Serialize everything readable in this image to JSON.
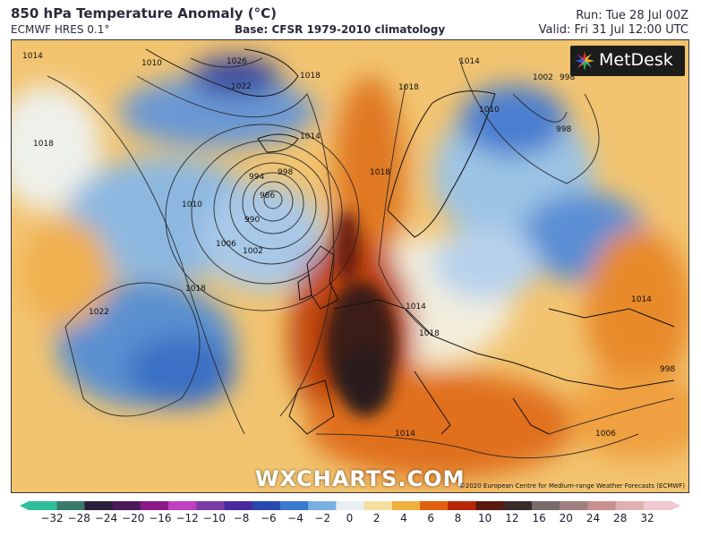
{
  "header": {
    "title": "850 hPa Temperature Anomaly (°C)",
    "model": "ECMWF HRES 0.1°",
    "base": "Base: CFSR 1979-2010 climatology",
    "run": "Run: Tue 28 Jul 00Z",
    "valid": "Valid: Fri 31 Jul 12:00 UTC"
  },
  "logo": {
    "text": "MetDesk"
  },
  "watermark": "WXCHARTS.COM",
  "copyright": "©2020 European Centre for Medium-range Weather Forecasts (ECMWF)",
  "isobar_labels": [
    "1014",
    "1010",
    "1026",
    "1022",
    "1018",
    "1018",
    "1014",
    "998",
    "994",
    "986",
    "990",
    "1002",
    "1006",
    "1010",
    "1018",
    "1022",
    "1018",
    "1014",
    "1018",
    "1010",
    "1002",
    "998",
    "998",
    "1014",
    "1014",
    "1018",
    "998",
    "1006",
    "1014"
  ],
  "colorscale": {
    "ticks": [
      "−32",
      "−28",
      "−24",
      "−20",
      "−16",
      "−12",
      "−10",
      "−8",
      "−6",
      "−4",
      "−2",
      "0",
      "2",
      "4",
      "6",
      "8",
      "10",
      "12",
      "16",
      "20",
      "24",
      "28",
      "32"
    ],
    "colors": [
      "#2fbf9a",
      "#3a7a6a",
      "#2a1f3a",
      "#4a1a5a",
      "#8a1a8a",
      "#c040c0",
      "#7a3aa8",
      "#4a2a9a",
      "#2a4ab0",
      "#3a7ad0",
      "#7ab0e0",
      "#e8eef2",
      "#f4e0a0",
      "#f0b040",
      "#e06010",
      "#b82808",
      "#5a1a10",
      "#3a2a2a",
      "#7a6a6a",
      "#a08080",
      "#c89090",
      "#e0b0b0",
      "#f0c8d0"
    ]
  }
}
